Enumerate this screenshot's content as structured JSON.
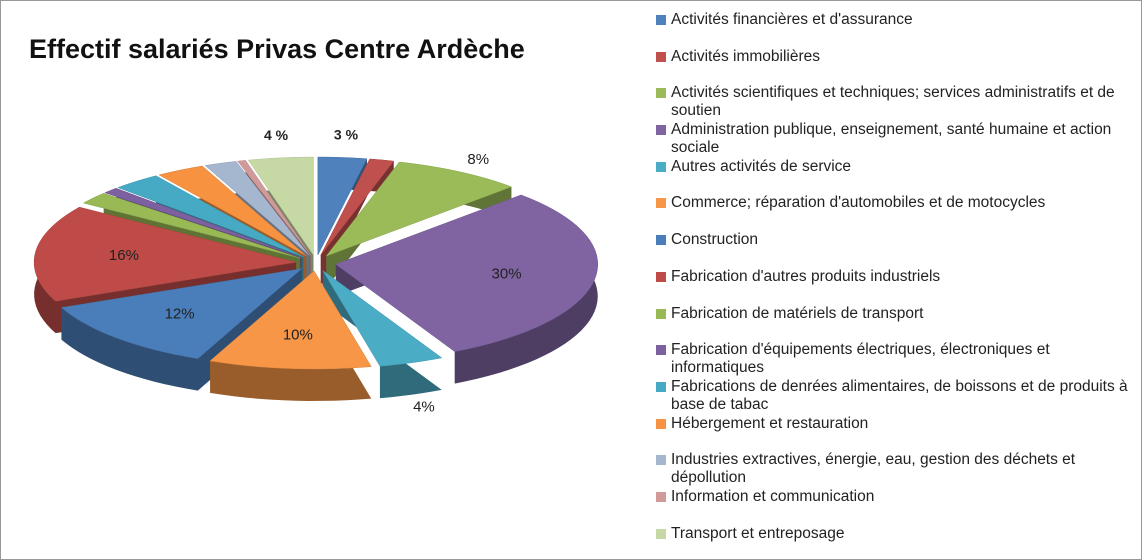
{
  "chart_data": {
    "type": "pie",
    "title": "Effectif salariés Privas Centre Ardèche",
    "categories": [
      "Activités financières et d'assurance",
      "Activités immobilières",
      "Activités scientifiques et techniques; services administratifs et de soutien",
      "Administration publique, enseignement, santé humaine et action sociale",
      "Autres activités de service",
      "Commerce; réparation d'automobiles et de motocycles",
      "Construction",
      "Fabrication d'autres produits industriels",
      "Fabrication de matériels de transport",
      "Fabrication d'équipements électriques, électroniques et informatiques",
      "Fabrications de denrées alimentaires, de boissons et de produits à base de tabac",
      "Hébergement et restauration",
      "Industries extractives, énergie, eau, gestion des déchets et dépollution",
      "Information et communication",
      "Transport et entreposage"
    ],
    "values": [
      3,
      1.5,
      8,
      30,
      4,
      10,
      12,
      16,
      2,
      1,
      3,
      3,
      2,
      0.5,
      4
    ],
    "value_labels": [
      "3 %",
      null,
      "8%",
      "30%",
      "4%",
      "10%",
      "12%",
      "16%",
      null,
      null,
      null,
      null,
      null,
      null,
      "4 %"
    ],
    "colors": [
      "#4f81bd",
      "#c0504d",
      "#9bbb59",
      "#8064a2",
      "#4bacc6",
      "#f79646",
      "#4a7ebb",
      "#be4b48",
      "#98b954",
      "#7d60a0",
      "#46aac5",
      "#f69240",
      "#a5b6cf",
      "#d19a9a",
      "#c6d9a5"
    ],
    "legend": "right"
  }
}
